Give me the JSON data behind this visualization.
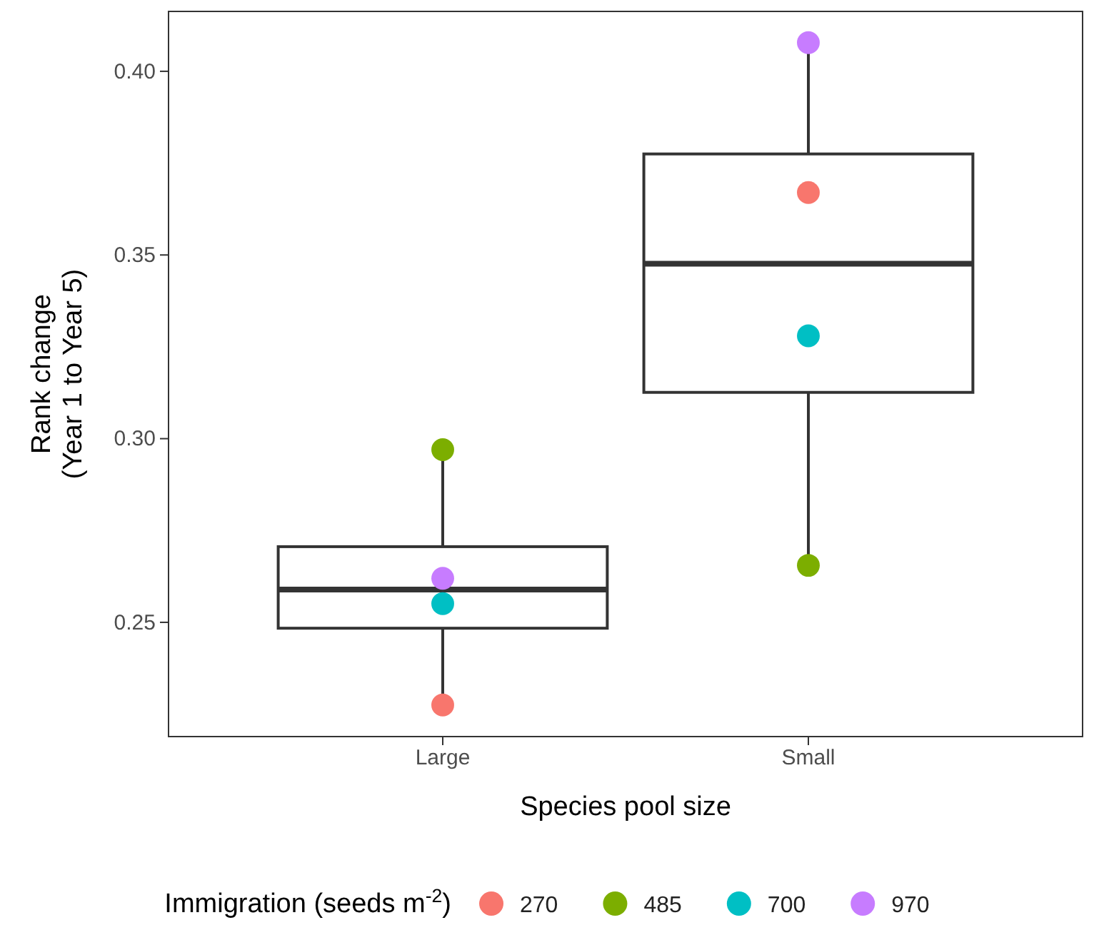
{
  "chart_data": {
    "type": "box",
    "xlabel": "Species pool size",
    "ylabel": "Rank change\n(Year 1 to Year 5)",
    "legend_title": "Immigration (seeds m$^{-2}$)",
    "categories": [
      "Large",
      "Small"
    ],
    "boxes": [
      {
        "low": 0.2275,
        "q1": 0.2484,
        "median": 0.2589,
        "q3": 0.2706,
        "high": 0.297
      },
      {
        "low": 0.2655,
        "q1": 0.3126,
        "median": 0.3476,
        "q3": 0.3775,
        "high": 0.4078
      }
    ],
    "series": [
      {
        "type": "scatter",
        "name": "270",
        "color": "#f8766d",
        "x": [
          "Large",
          "Small"
        ],
        "values": [
          0.2275,
          0.367
        ]
      },
      {
        "type": "scatter",
        "name": "485",
        "color": "#7cae00",
        "x": [
          "Large",
          "Small"
        ],
        "values": [
          0.297,
          0.2655
        ]
      },
      {
        "type": "scatter",
        "name": "700",
        "color": "#00bfc4",
        "x": [
          "Large",
          "Small"
        ],
        "values": [
          0.2551,
          0.328
        ]
      },
      {
        "type": "scatter",
        "name": "970",
        "color": "#c77cff",
        "x": [
          "Large",
          "Small"
        ],
        "values": [
          0.262,
          0.4078
        ]
      }
    ],
    "ylim": [
      0.2189,
      0.4163
    ],
    "yticks": [
      {
        "value": 0.25,
        "label": "0.25"
      },
      {
        "value": 0.3,
        "label": "0.30"
      },
      {
        "value": 0.35,
        "label": "0.35"
      },
      {
        "value": 0.4,
        "label": "0.40"
      }
    ],
    "grid": false,
    "legend": "bottom",
    "marker": "circle"
  }
}
